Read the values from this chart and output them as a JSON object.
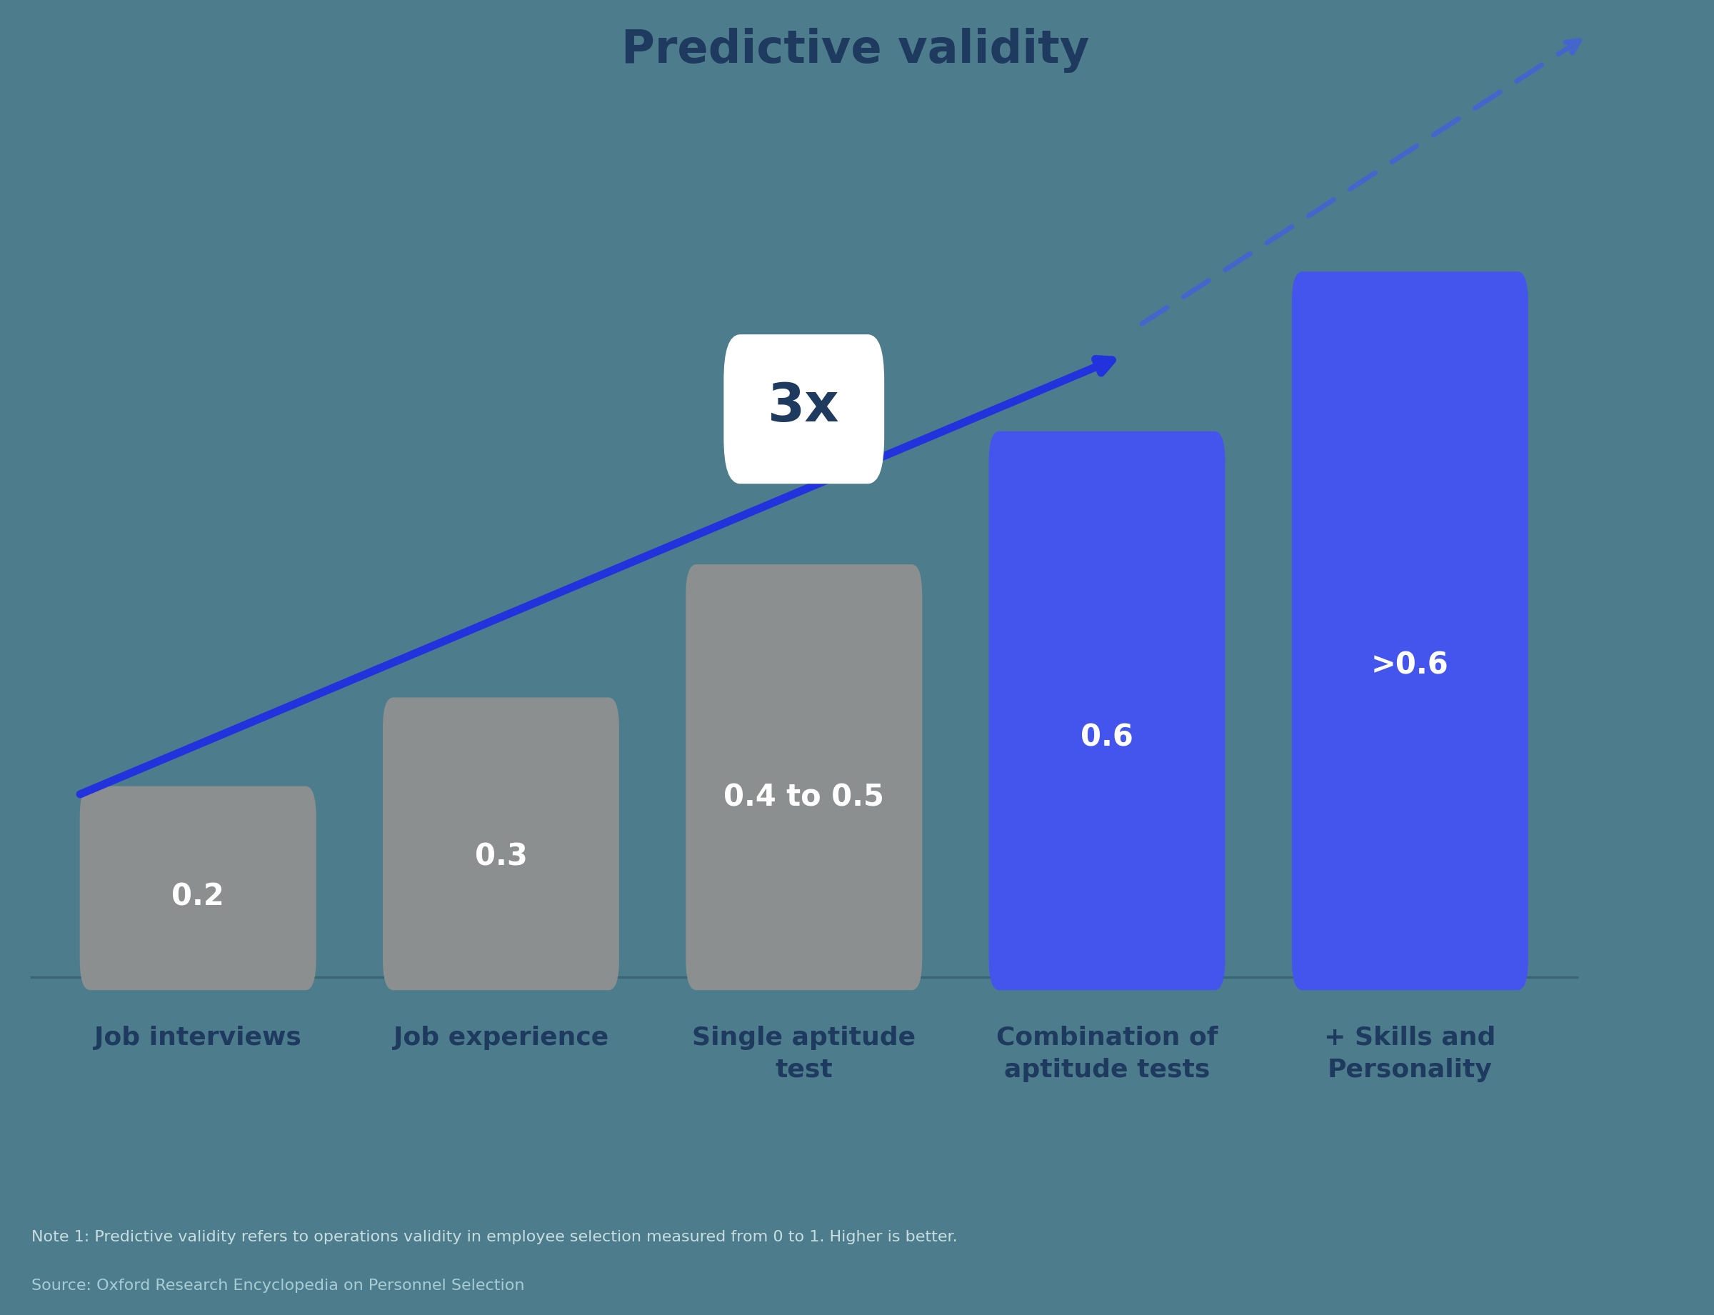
{
  "title": "Predictive validity",
  "title_color": "#1e3a5f",
  "title_fontsize": 46,
  "background_color": "#4d7d8c",
  "categories": [
    "Job interviews",
    "Job experience",
    "Single aptitude\ntest",
    "Combination of\naptitude tests",
    "+ Skills and\nPersonality"
  ],
  "values": [
    0.2,
    0.3,
    0.45,
    0.6,
    0.78
  ],
  "bar_labels": [
    "0.2",
    "0.3",
    "0.4 to 0.5",
    "0.6",
    ">0.6"
  ],
  "bar_colors": [
    "#8c8f8f",
    "#8c8f8f",
    "#8c8f8f",
    "#4455ee",
    "#4455ee"
  ],
  "label_fontsize": 30,
  "category_fontsize": 26,
  "note1": "Note 1: Predictive validity refers to operations validity in employee selection measured from 0 to 1. Higher is better.",
  "source": "Source: Oxford Research Encyclopedia on Personnel Selection",
  "note_color": "#c8dde0",
  "source_color": "#a8ccd4",
  "note_fontsize": 16,
  "solid_arrow_color": "#2233dd",
  "dashed_arrow_color": "#8899bb",
  "dashed_arrowhead_color": "#4466cc",
  "multiplier_text": "3x",
  "multiplier_fontsize": 54,
  "multiplier_color": "#1e3a5f",
  "badge_color": "#ffffff"
}
